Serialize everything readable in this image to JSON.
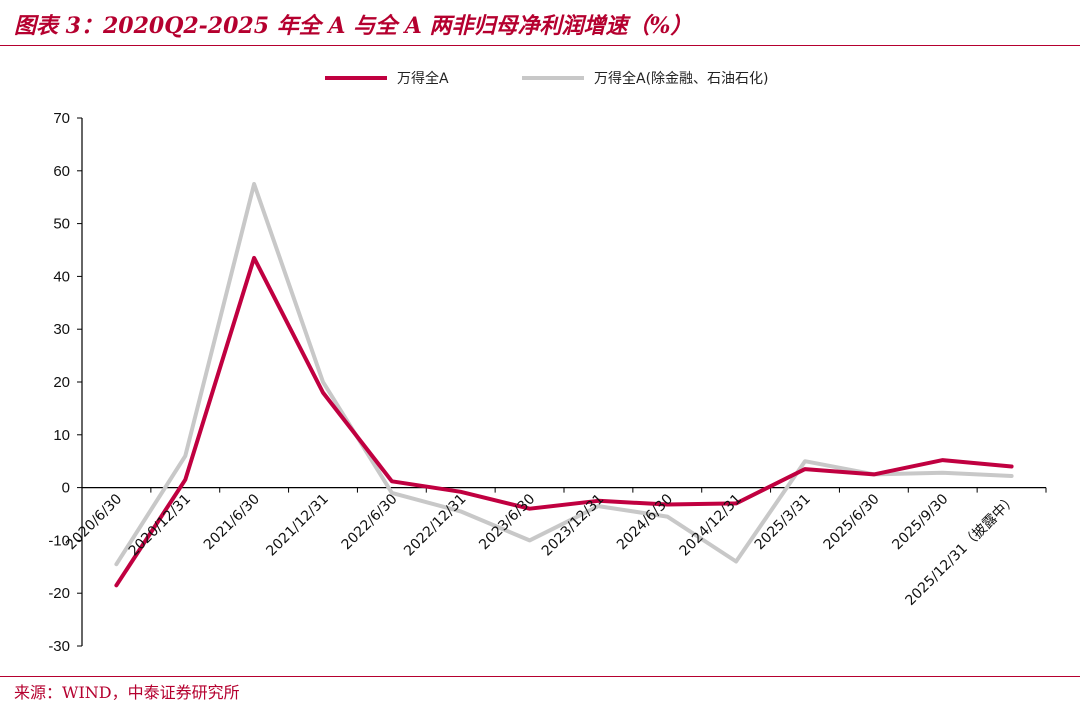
{
  "header": {
    "title": "图表 3：2020Q2-2025 年全 A 与全 A 两非归母净利润增速（%）"
  },
  "footer": {
    "source": "来源：WIND，中泰证券研究所"
  },
  "colors": {
    "accent": "#b5002f",
    "series_all_a": "#c00040",
    "series_ex_fin": "#c8c8c8"
  },
  "chart_data": {
    "type": "line",
    "title": "",
    "xlabel": "",
    "ylabel": "",
    "categories": [
      "2020/6/30",
      "2020/12/31",
      "2021/6/30",
      "2021/12/31",
      "2022/6/30",
      "2022/12/31",
      "2023/6/30",
      "2023/12/31",
      "2024/6/30",
      "2024/12/31",
      "2025/3/31",
      "2025/6/30",
      "2025/9/30",
      "2025/12/31（披露中）"
    ],
    "ylim": [
      -30,
      70
    ],
    "yticks": [
      -30,
      -20,
      -10,
      0,
      10,
      20,
      30,
      40,
      50,
      60,
      70
    ],
    "grid": false,
    "legend_position": "top-center",
    "series": [
      {
        "name": "万得全A",
        "color": "#c00040",
        "values": [
          -18.5,
          1.5,
          43.5,
          18.0,
          1.2,
          -0.8,
          -4.0,
          -2.5,
          -3.2,
          -3.0,
          3.5,
          2.5,
          5.2,
          4.0
        ]
      },
      {
        "name": "万得全A(除金融、石油石化)",
        "color": "#c8c8c8",
        "values": [
          -14.5,
          6.0,
          57.5,
          20.0,
          -1.0,
          -4.5,
          -10.0,
          -3.5,
          -5.5,
          -14.0,
          5.0,
          2.5,
          2.8,
          2.2
        ]
      }
    ]
  }
}
